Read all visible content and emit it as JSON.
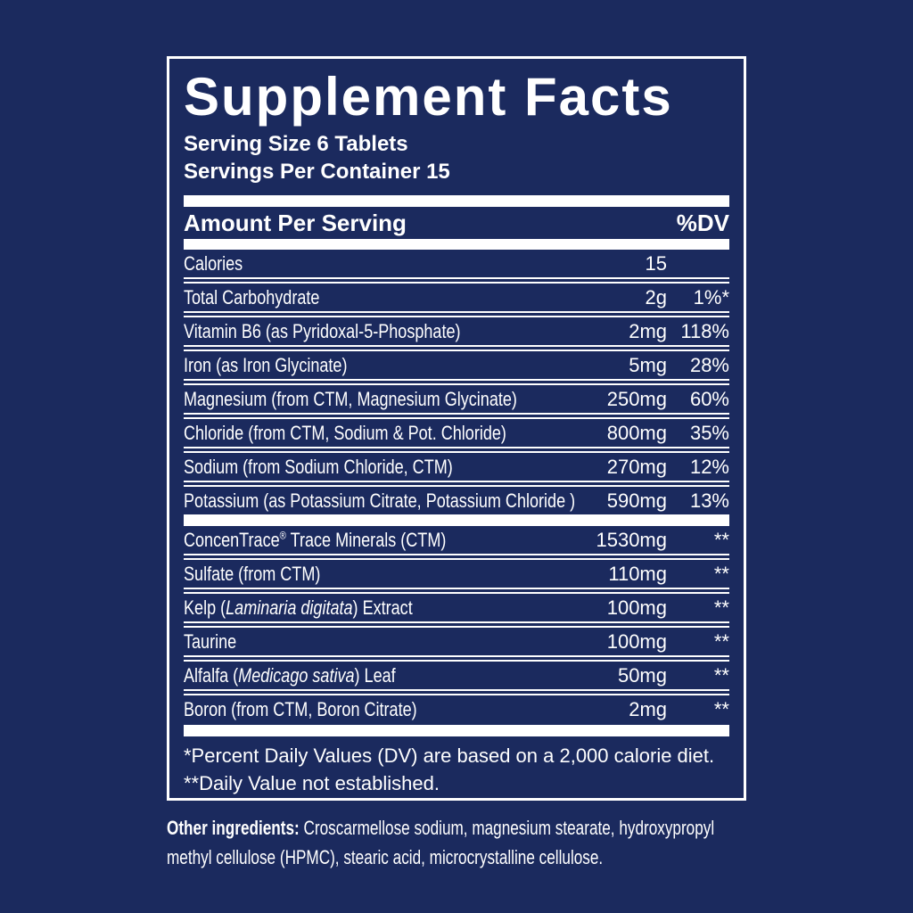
{
  "colors": {
    "background": "#1b2a5e",
    "text": "#ffffff",
    "rule": "#ffffff"
  },
  "panel": {
    "title": "Supplement Facts",
    "serving_size": "Serving Size 6 Tablets",
    "servings_per_container": "Servings Per Container 15",
    "header": {
      "amount_label": "Amount Per Serving",
      "dv_label": "%DV"
    },
    "rows": [
      {
        "name_segments": [
          {
            "t": "Calories",
            "s": "n"
          }
        ],
        "amount": "15",
        "dv": ""
      },
      {
        "name_segments": [
          {
            "t": "Total Carbohydrate",
            "s": "n"
          }
        ],
        "amount": "2g",
        "dv": "1%*"
      },
      {
        "name_segments": [
          {
            "t": "Vitamin B6 (as Pyridoxal-5-Phosphate)",
            "s": "n"
          }
        ],
        "amount": "2mg",
        "dv": "118%"
      },
      {
        "name_segments": [
          {
            "t": "Iron (as Iron Glycinate)",
            "s": "n"
          }
        ],
        "amount": "5mg",
        "dv": "28%"
      },
      {
        "name_segments": [
          {
            "t": "Magnesium (from CTM, Magnesium Glycinate)",
            "s": "n"
          }
        ],
        "amount": "250mg",
        "dv": "60%"
      },
      {
        "name_segments": [
          {
            "t": "Chloride (from CTM, Sodium & Pot. Chloride)",
            "s": "n"
          }
        ],
        "amount": "800mg",
        "dv": "35%"
      },
      {
        "name_segments": [
          {
            "t": "Sodium (from Sodium Chloride, CTM)",
            "s": "n"
          }
        ],
        "amount": "270mg",
        "dv": "12%"
      },
      {
        "name_segments": [
          {
            "t": "Potassium (as Potassium Citrate, Potassium Chloride )",
            "s": "n"
          }
        ],
        "amount": "590mg",
        "dv": "13%",
        "thick_bar_after": true
      },
      {
        "name_segments": [
          {
            "t": "ConcenTrace",
            "s": "n"
          },
          {
            "t": "®",
            "s": "sup"
          },
          {
            "t": " Trace Minerals (CTM)",
            "s": "n"
          }
        ],
        "amount": "1530mg",
        "dv": "**"
      },
      {
        "name_segments": [
          {
            "t": "Sulfate (from CTM)",
            "s": "n"
          }
        ],
        "amount": "110mg",
        "dv": "**"
      },
      {
        "name_segments": [
          {
            "t": "Kelp (",
            "s": "n"
          },
          {
            "t": "Laminaria digitata",
            "s": "i"
          },
          {
            "t": ") Extract",
            "s": "n"
          }
        ],
        "amount": "100mg",
        "dv": "**"
      },
      {
        "name_segments": [
          {
            "t": "Taurine",
            "s": "n"
          }
        ],
        "amount": "100mg",
        "dv": "**"
      },
      {
        "name_segments": [
          {
            "t": "Alfalfa (",
            "s": "n"
          },
          {
            "t": "Medicago sativa",
            "s": "i"
          },
          {
            "t": ") Leaf",
            "s": "n"
          }
        ],
        "amount": "50mg",
        "dv": "**"
      },
      {
        "name_segments": [
          {
            "t": "Boron (from CTM, Boron Citrate)",
            "s": "n"
          }
        ],
        "amount": "2mg",
        "dv": "**"
      }
    ],
    "footnotes": [
      "*Percent Daily Values (DV) are based on a 2,000 calorie diet.",
      "**Daily Value not established."
    ]
  },
  "other_ingredients": {
    "label": "Other ingredients:",
    "text": " Croscarmellose sodium, magnesium stearate, hydroxypropyl methyl cellulose (HPMC), stearic acid, microcrystalline cellulose."
  }
}
